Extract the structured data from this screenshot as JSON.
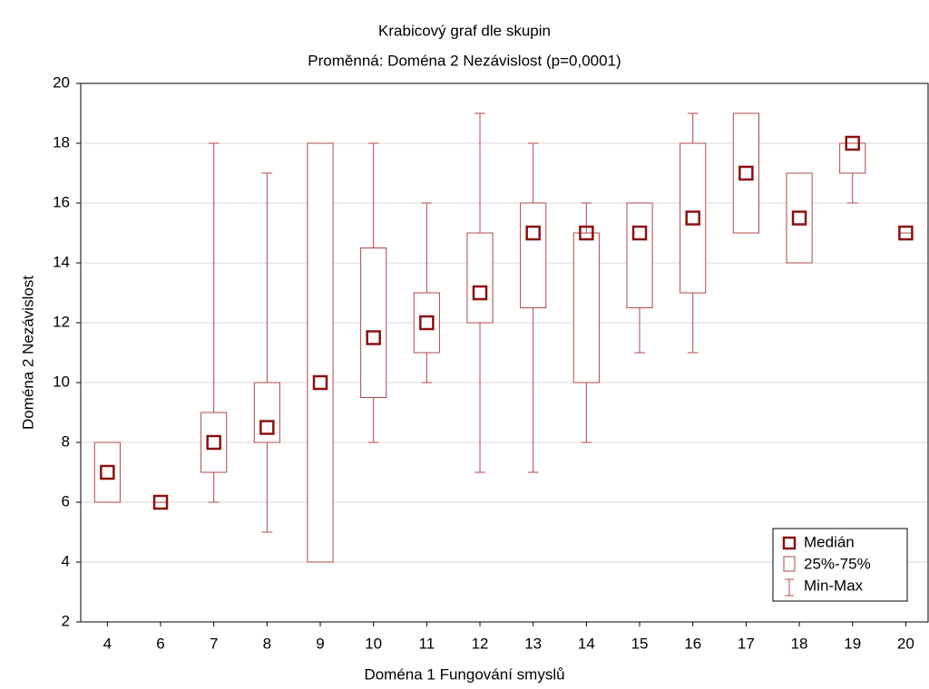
{
  "chart_data": {
    "type": "box",
    "title": "Krabicový graf dle skupin",
    "subtitle": "Proměnná: Doména 2 Nezávislost (p=0,0001)",
    "x_label": "Doména 1 Fungování smyslů",
    "y_label": "Doména 2 Nezávislost",
    "categories": [
      "4",
      "6",
      "7",
      "8",
      "9",
      "10",
      "11",
      "12",
      "13",
      "14",
      "15",
      "16",
      "17",
      "18",
      "19",
      "20"
    ],
    "medians": [
      7,
      6,
      8,
      8.5,
      10,
      11.5,
      12,
      13,
      15,
      15,
      15,
      15.5,
      17,
      15.5,
      18,
      15
    ],
    "q1": [
      6,
      6,
      7,
      8,
      4,
      9.5,
      11,
      12,
      12.5,
      10,
      12.5,
      13,
      15,
      14,
      17,
      15
    ],
    "q3": [
      8,
      6,
      9,
      10,
      18,
      14.5,
      13,
      15,
      16,
      15,
      16,
      18,
      19,
      17,
      18,
      15
    ],
    "min": [
      6,
      6,
      6,
      5,
      4,
      8,
      10,
      7,
      7,
      8,
      11,
      11,
      15,
      14,
      16,
      15
    ],
    "max": [
      8,
      6,
      18,
      17,
      18,
      18,
      16,
      19,
      18,
      16,
      16,
      19,
      19,
      17,
      18,
      15
    ],
    "legend_labels": [
      "Medián",
      "25%-75%",
      "Min-Max"
    ],
    "median_color": "#8b1010",
    "box_color": "#b04848",
    "ylim": [
      2,
      20
    ],
    "yticks": [
      2,
      4,
      6,
      8,
      10,
      12,
      14,
      16,
      18,
      20
    ],
    "grid": true
  }
}
